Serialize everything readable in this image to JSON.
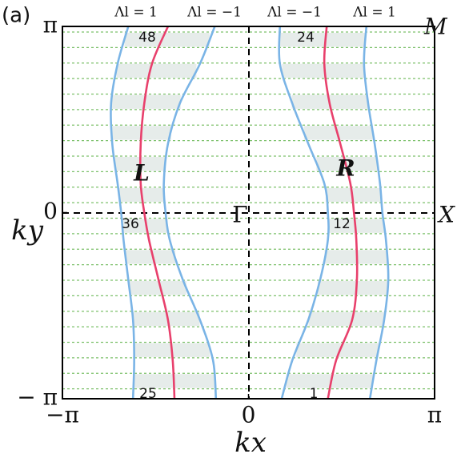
{
  "chart_data": {
    "type": "line",
    "panel_label": "(a)",
    "xlabel": "kx",
    "ylabel": "ky",
    "xlim": [
      -3.1416,
      3.1416
    ],
    "ylim": [
      -3.1416,
      3.1416
    ],
    "xticks": [
      {
        "value": -3.1416,
        "label": "−π"
      },
      0,
      {
        "value": 3.1416,
        "label": "π"
      }
    ],
    "yticks": [
      {
        "value": -3.1416,
        "label": "− π"
      },
      0,
      {
        "value": 3.1416,
        "label": "π"
      }
    ],
    "y": [
      3.14,
      2.51,
      1.84,
      1.16,
      0.49,
      0,
      -0.46,
      -1.13,
      -1.81,
      -2.49,
      -3.14
    ],
    "series": [
      {
        "name": "Λl = 1",
        "color": "#7ab4e6",
        "values": [
          -2.03,
          -2.21,
          -2.32,
          -2.3,
          -2.21,
          -2.15,
          -2.11,
          -2.03,
          -1.95,
          -1.93,
          -1.95
        ]
      },
      {
        "name": "L",
        "color": "#e8406c",
        "values": [
          -1.36,
          -1.63,
          -1.76,
          -1.82,
          -1.82,
          -1.76,
          -1.68,
          -1.52,
          -1.36,
          -1.28,
          -1.25
        ]
      },
      {
        "name": "Λl = −1",
        "color": "#7ab4e6",
        "values": [
          -0.57,
          -0.82,
          -1.16,
          -1.36,
          -1.43,
          -1.4,
          -1.33,
          -1.11,
          -0.82,
          -0.6,
          -0.55
        ]
      },
      {
        "name": "Λl = −1",
        "color": "#7ab4e6",
        "values": [
          0.53,
          0.53,
          0.74,
          1.01,
          1.28,
          1.34,
          1.34,
          1.21,
          1.01,
          0.74,
          0.56
        ]
      },
      {
        "name": "R",
        "color": "#e8406c",
        "values": [
          1.32,
          1.28,
          1.37,
          1.55,
          1.72,
          1.78,
          1.82,
          1.83,
          1.75,
          1.48,
          1.34
        ]
      },
      {
        "name": "Λl = 1",
        "color": "#7ab4e6",
        "values": [
          1.99,
          1.95,
          2.02,
          2.13,
          2.22,
          2.26,
          2.32,
          2.36,
          2.29,
          2.16,
          2.05
        ]
      }
    ],
    "points": {
      "center": "Γ",
      "edge": "X",
      "corner": "M"
    },
    "annotations": [
      "48",
      "24",
      "36",
      "12",
      "25",
      "1"
    ]
  }
}
